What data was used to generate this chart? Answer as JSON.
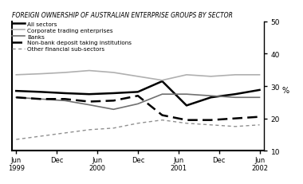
{
  "title": "FOREIGN OWNERSHIP OF AUSTRALIAN ENTERPRISE GROUPS BY SECTOR",
  "ylabel": "%",
  "ylim": [
    10,
    50
  ],
  "yticks": [
    10,
    20,
    30,
    40,
    50
  ],
  "x_labels": [
    "Jun\n1999",
    "Dec",
    "Jun\n2000",
    "Dec",
    "Jun\n2001",
    "Dec",
    "Jun\n2002"
  ],
  "series": {
    "All sectors": {
      "color": "#000000",
      "linestyle": "solid",
      "linewidth": 1.8,
      "dashes": null,
      "values": [
        28.5,
        28.2,
        27.8,
        27.5,
        27.8,
        28.2,
        31.5,
        24.0,
        26.5,
        27.5,
        28.8
      ]
    },
    "Corporate trading enterprises": {
      "color": "#b0b0b0",
      "linestyle": "solid",
      "linewidth": 1.2,
      "dashes": null,
      "values": [
        33.5,
        33.8,
        34.2,
        34.8,
        34.2,
        33.0,
        31.8,
        33.5,
        33.0,
        33.5,
        33.5
      ]
    },
    "Banks": {
      "color": "#707070",
      "linestyle": "solid",
      "linewidth": 1.2,
      "dashes": null,
      "values": [
        26.5,
        26.0,
        25.5,
        24.2,
        22.8,
        24.5,
        27.5,
        27.5,
        27.0,
        26.5,
        26.5
      ]
    },
    "Non-bank deposit taking institutions": {
      "color": "#000000",
      "linestyle": "dashed",
      "linewidth": 1.8,
      "dashes": [
        5,
        2.5
      ],
      "values": [
        26.5,
        26.0,
        26.0,
        25.2,
        25.5,
        27.0,
        21.0,
        19.5,
        19.5,
        20.0,
        20.5
      ]
    },
    "Other financial sub-sectors": {
      "color": "#909090",
      "linestyle": "dashed",
      "linewidth": 1.0,
      "dashes": [
        3,
        2.5
      ],
      "values": [
        13.5,
        14.5,
        15.5,
        16.5,
        17.0,
        18.5,
        19.5,
        18.5,
        18.0,
        17.5,
        18.0
      ]
    }
  },
  "legend_labels": [
    "All sectors",
    "Corporate trading enterprises",
    "Banks",
    "Non-bank deposit taking institutions",
    "Other financial sub-sectors"
  ],
  "n_points": 11
}
